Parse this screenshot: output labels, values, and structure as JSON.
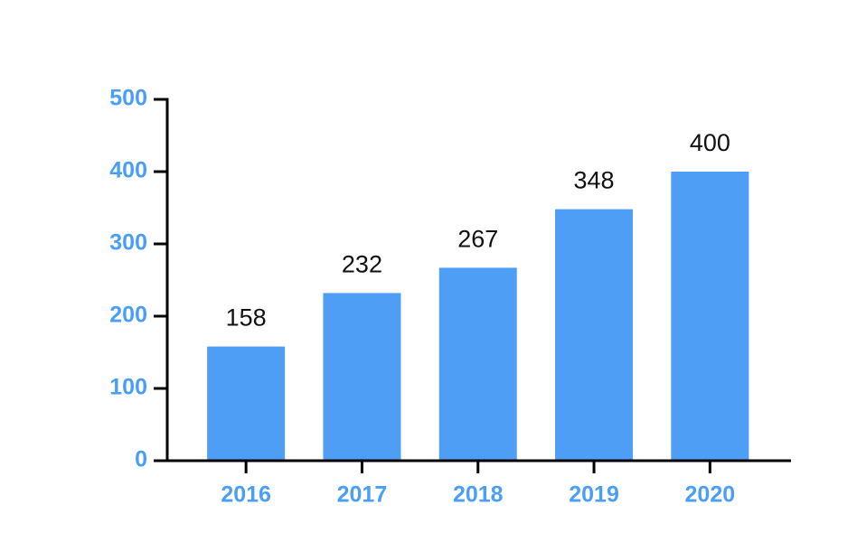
{
  "chart_data": {
    "type": "bar",
    "categories": [
      "2016",
      "2017",
      "2018",
      "2019",
      "2020"
    ],
    "values": [
      158,
      232,
      267,
      348,
      400
    ],
    "color": "#4e9ef5",
    "ylim": [
      0,
      500
    ],
    "yticks": [
      0,
      100,
      200,
      300,
      400,
      500
    ],
    "grid": false,
    "data_labels": true
  }
}
